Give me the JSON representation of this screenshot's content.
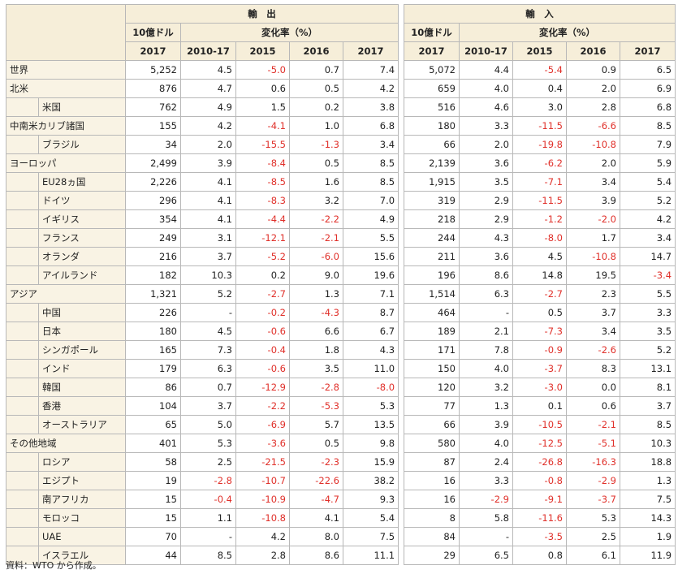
{
  "headers": {
    "exports": "輸　出",
    "imports": "輸　入",
    "unit": "10億ドル",
    "change": "変化率（%）",
    "years": [
      "2017",
      "2010-17",
      "2015",
      "2016",
      "2017"
    ]
  },
  "rows": [
    {
      "name": "世界",
      "indent": false,
      "ex": [
        "5,252",
        "4.5",
        "-5.0",
        "0.7",
        "7.4"
      ],
      "im": [
        "5,072",
        "4.4",
        "-5.4",
        "0.9",
        "6.5"
      ]
    },
    {
      "name": "北米",
      "indent": false,
      "ex": [
        "876",
        "4.7",
        "0.6",
        "0.5",
        "4.2"
      ],
      "im": [
        "659",
        "4.0",
        "0.4",
        "2.0",
        "6.9"
      ]
    },
    {
      "name": "米国",
      "indent": true,
      "ex": [
        "762",
        "4.9",
        "1.5",
        "0.2",
        "3.8"
      ],
      "im": [
        "516",
        "4.6",
        "3.0",
        "2.8",
        "6.8"
      ]
    },
    {
      "name": "中南米カリブ諸国",
      "indent": false,
      "ex": [
        "155",
        "4.2",
        "-4.1",
        "1.0",
        "6.8"
      ],
      "im": [
        "180",
        "3.3",
        "-11.5",
        "-6.6",
        "8.5"
      ]
    },
    {
      "name": "ブラジル",
      "indent": true,
      "ex": [
        "34",
        "2.0",
        "-15.5",
        "-1.3",
        "3.4"
      ],
      "im": [
        "66",
        "2.0",
        "-19.8",
        "-10.8",
        "7.9"
      ]
    },
    {
      "name": "ヨーロッパ",
      "indent": false,
      "ex": [
        "2,499",
        "3.9",
        "-8.4",
        "0.5",
        "8.5"
      ],
      "im": [
        "2,139",
        "3.6",
        "-6.2",
        "2.0",
        "5.9"
      ]
    },
    {
      "name": "EU28ヵ国",
      "indent": true,
      "ex": [
        "2,226",
        "4.1",
        "-8.5",
        "1.6",
        "8.5"
      ],
      "im": [
        "1,915",
        "3.5",
        "-7.1",
        "3.4",
        "5.4"
      ]
    },
    {
      "name": "ドイツ",
      "indent": true,
      "ex": [
        "296",
        "4.1",
        "-8.3",
        "3.2",
        "7.0"
      ],
      "im": [
        "319",
        "2.9",
        "-11.5",
        "3.9",
        "5.2"
      ]
    },
    {
      "name": "イギリス",
      "indent": true,
      "ex": [
        "354",
        "4.1",
        "-4.4",
        "-2.2",
        "4.9"
      ],
      "im": [
        "218",
        "2.9",
        "-1.2",
        "-2.0",
        "4.2"
      ]
    },
    {
      "name": "フランス",
      "indent": true,
      "ex": [
        "249",
        "3.1",
        "-12.1",
        "-2.1",
        "5.5"
      ],
      "im": [
        "244",
        "4.3",
        "-8.0",
        "1.7",
        "3.4"
      ]
    },
    {
      "name": "オランダ",
      "indent": true,
      "ex": [
        "216",
        "3.7",
        "-5.2",
        "-6.0",
        "15.6"
      ],
      "im": [
        "211",
        "3.6",
        "4.5",
        "-10.8",
        "14.7"
      ]
    },
    {
      "name": "アイルランド",
      "indent": true,
      "ex": [
        "182",
        "10.3",
        "0.2",
        "9.0",
        "19.6"
      ],
      "im": [
        "196",
        "8.6",
        "14.8",
        "19.5",
        "-3.4"
      ]
    },
    {
      "name": "アジア",
      "indent": false,
      "ex": [
        "1,321",
        "5.2",
        "-2.7",
        "1.3",
        "7.1"
      ],
      "im": [
        "1,514",
        "6.3",
        "-2.7",
        "2.3",
        "5.5"
      ]
    },
    {
      "name": "中国",
      "indent": true,
      "ex": [
        "226",
        "-",
        "-0.2",
        "-4.3",
        "8.7"
      ],
      "im": [
        "464",
        "-",
        "0.5",
        "3.7",
        "3.3"
      ]
    },
    {
      "name": "日本",
      "indent": true,
      "ex": [
        "180",
        "4.5",
        "-0.6",
        "6.6",
        "6.7"
      ],
      "im": [
        "189",
        "2.1",
        "-7.3",
        "3.4",
        "3.5"
      ]
    },
    {
      "name": "シンガポール",
      "indent": true,
      "ex": [
        "165",
        "7.3",
        "-0.4",
        "1.8",
        "4.3"
      ],
      "im": [
        "171",
        "7.8",
        "-0.9",
        "-2.6",
        "5.2"
      ]
    },
    {
      "name": "インド",
      "indent": true,
      "ex": [
        "179",
        "6.3",
        "-0.6",
        "3.5",
        "11.0"
      ],
      "im": [
        "150",
        "4.0",
        "-3.7",
        "8.3",
        "13.1"
      ]
    },
    {
      "name": "韓国",
      "indent": true,
      "ex": [
        "86",
        "0.7",
        "-12.9",
        "-2.8",
        "-8.0"
      ],
      "im": [
        "120",
        "3.2",
        "-3.0",
        "0.0",
        "8.1"
      ]
    },
    {
      "name": "香港",
      "indent": true,
      "ex": [
        "104",
        "3.7",
        "-2.2",
        "-5.3",
        "5.3"
      ],
      "im": [
        "77",
        "1.3",
        "0.1",
        "0.6",
        "3.7"
      ]
    },
    {
      "name": "オーストラリア",
      "indent": true,
      "ex": [
        "65",
        "5.0",
        "-6.9",
        "5.7",
        "13.5"
      ],
      "im": [
        "66",
        "3.9",
        "-10.5",
        "-2.1",
        "8.5"
      ]
    },
    {
      "name": "その他地域",
      "indent": false,
      "ex": [
        "401",
        "5.3",
        "-3.6",
        "0.5",
        "9.8"
      ],
      "im": [
        "580",
        "4.0",
        "-12.5",
        "-5.1",
        "10.3"
      ]
    },
    {
      "name": "ロシア",
      "indent": true,
      "ex": [
        "58",
        "2.5",
        "-21.5",
        "-2.3",
        "15.9"
      ],
      "im": [
        "87",
        "2.4",
        "-26.8",
        "-16.3",
        "18.8"
      ]
    },
    {
      "name": "エジプト",
      "indent": true,
      "ex": [
        "19",
        "-2.8",
        "-10.7",
        "-22.6",
        "38.2"
      ],
      "im": [
        "16",
        "3.3",
        "-0.8",
        "-2.9",
        "1.3"
      ]
    },
    {
      "name": "南アフリカ",
      "indent": true,
      "ex": [
        "15",
        "-0.4",
        "-10.9",
        "-4.7",
        "9.3"
      ],
      "im": [
        "16",
        "-2.9",
        "-9.1",
        "-3.7",
        "7.5"
      ]
    },
    {
      "name": "モロッコ",
      "indent": true,
      "ex": [
        "15",
        "1.1",
        "-10.8",
        "4.1",
        "5.4"
      ],
      "im": [
        "8",
        "5.8",
        "-11.6",
        "5.3",
        "14.3"
      ]
    },
    {
      "name": "UAE",
      "indent": true,
      "ex": [
        "70",
        "-",
        "4.2",
        "8.0",
        "7.5"
      ],
      "im": [
        "84",
        "-",
        "-3.5",
        "2.5",
        "1.9"
      ]
    },
    {
      "name": "イスラエル",
      "indent": true,
      "ex": [
        "44",
        "8.5",
        "2.8",
        "8.6",
        "11.1"
      ],
      "im": [
        "29",
        "6.5",
        "0.8",
        "6.1",
        "11.9"
      ]
    }
  ],
  "source": "資料：WTO から作成。",
  "colors": {
    "negative": "#e0302a",
    "header_bg": "#f6eed9",
    "label_bg": "#f9f3e4",
    "border": "#b8b8b8"
  }
}
